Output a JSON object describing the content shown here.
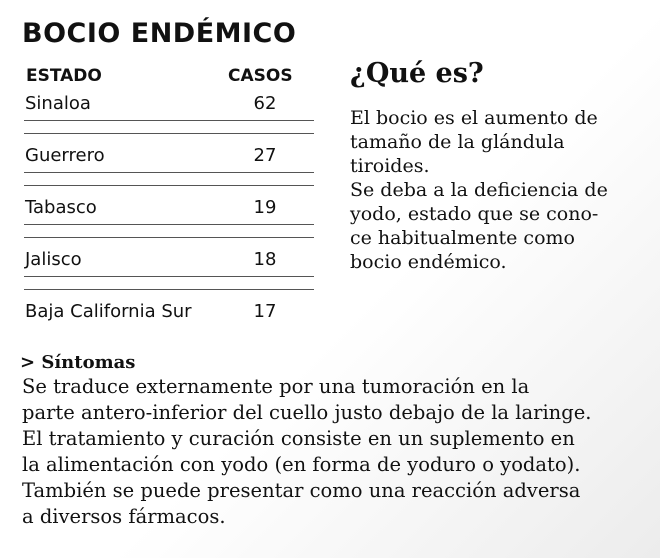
{
  "header": {
    "title": "BOCIO ENDÉMICO"
  },
  "table": {
    "columns": [
      "ESTADO",
      "CASOS"
    ],
    "rows": [
      [
        "Sinaloa",
        "62"
      ],
      [
        "Guerrero",
        "27"
      ],
      [
        "Tabasco",
        "19"
      ],
      [
        "Jalisco",
        "18"
      ],
      [
        "Baja California Sur",
        "17"
      ]
    ]
  },
  "que_es": {
    "heading": "¿Qué es?",
    "lines": [
      "El bocio es el aumento de",
      "tamaño de la glándula",
      "tiroides.",
      "Se deba a la deficiencia de",
      "yodo, estado que se cono-",
      "ce habitualmente como",
      "bocio endémico."
    ]
  },
  "sintomas": {
    "heading": "> Síntomas",
    "lines": [
      "Se traduce externamente por una tumoración en la",
      "parte antero-inferior del cuello justo debajo de la laringe.",
      "El tratamiento y curación consiste en un suplemento en",
      "la alimentación con yodo (en forma de yoduro o yodato).",
      "También se puede presentar como una reacción adversa",
      "a diversos fármacos."
    ]
  }
}
